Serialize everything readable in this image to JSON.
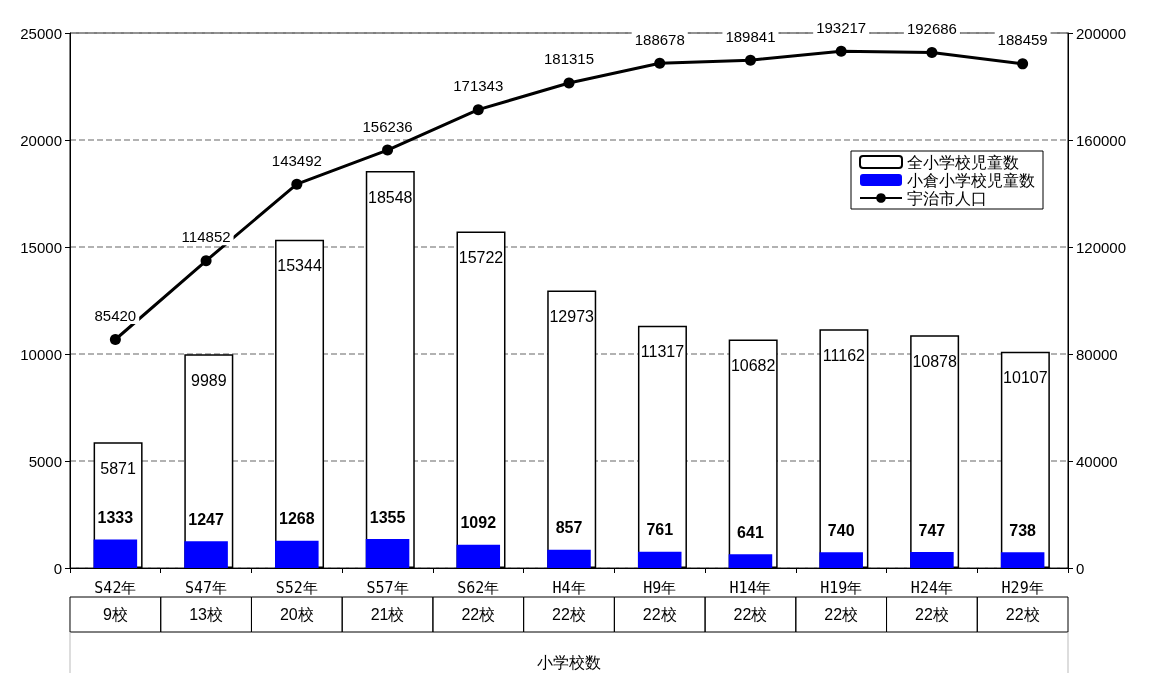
{
  "chart_data": {
    "type": "bar",
    "categories": [
      "S42年",
      "S47年",
      "S52年",
      "S57年",
      "S62年",
      "H4年",
      "H9年",
      "H14年",
      "H19年",
      "H24年",
      "H29年"
    ],
    "series": [
      {
        "name": "全小学校児童数",
        "color": "#ffffff",
        "values": [
          5871,
          9989,
          15344,
          18548,
          15722,
          12973,
          11317,
          10682,
          11162,
          10878,
          10107
        ]
      },
      {
        "name": "小倉小学校児童数",
        "color": "#0000ff",
        "values": [
          1333,
          1247,
          1268,
          1355,
          1092,
          857,
          761,
          641,
          740,
          747,
          738
        ]
      },
      {
        "name": "宇治市人口",
        "type": "line",
        "axis": "y2",
        "color": "#000000",
        "values": [
          85420,
          114852,
          143492,
          156236,
          171343,
          181315,
          188678,
          189841,
          193217,
          192686,
          188459
        ]
      }
    ],
    "ylim": [
      0,
      25000
    ],
    "yticks": [
      0,
      5000,
      10000,
      15000,
      20000,
      25000
    ],
    "y2lim": [
      0,
      200000
    ],
    "y2ticks": [
      0,
      40000,
      80000,
      120000,
      160000,
      200000
    ],
    "grid": "y",
    "legend": "top right",
    "marker": "circle",
    "data_labels": true,
    "xlabel": "小学校数",
    "annotations": [
      "9校",
      "13校",
      "20校",
      "21校",
      "22校",
      "22校",
      "22校",
      "22校",
      "22校",
      "22校",
      "22校"
    ]
  }
}
